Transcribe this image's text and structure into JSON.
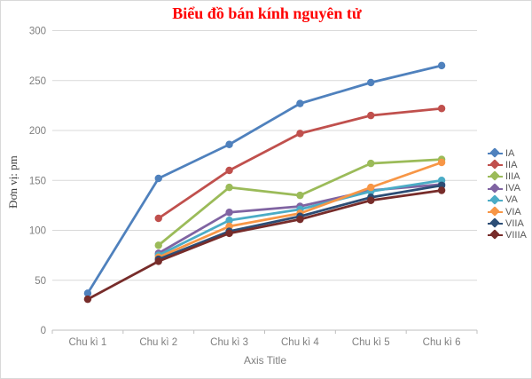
{
  "chart_data": {
    "type": "line",
    "title": "Biểu đồ bán kính nguyên tử",
    "title_color": "#ff0000",
    "xlabel": "Axis Title",
    "ylabel": "Đơn vị: pm",
    "categories": [
      "Chu kì 1",
      "Chu kì 2",
      "Chu kì 3",
      "Chu kì 4",
      "Chu kì 5",
      "Chu kì 6"
    ],
    "yticks": [
      0,
      50,
      100,
      150,
      200,
      250,
      300
    ],
    "ylim": [
      0,
      300
    ],
    "grid": true,
    "legend_position": "right",
    "series": [
      {
        "name": "IA",
        "color": "#4f81bd",
        "values": [
          37,
          152,
          186,
          227,
          248,
          265
        ]
      },
      {
        "name": "IIA",
        "color": "#c0504d",
        "values": [
          null,
          112,
          160,
          197,
          215,
          222
        ]
      },
      {
        "name": "IIIA",
        "color": "#9bbb59",
        "values": [
          null,
          85,
          143,
          135,
          167,
          171
        ]
      },
      {
        "name": "IVA",
        "color": "#8064a2",
        "values": [
          null,
          77,
          118,
          124,
          140,
          146
        ]
      },
      {
        "name": "VA",
        "color": "#4bacc6",
        "values": [
          null,
          75,
          110,
          121,
          139,
          150
        ]
      },
      {
        "name": "VIA",
        "color": "#f79646",
        "values": [
          null,
          73,
          104,
          117,
          143,
          168
        ]
      },
      {
        "name": "VIIA",
        "color": "#2c4d75",
        "values": [
          null,
          71,
          99,
          114,
          133,
          145
        ]
      },
      {
        "name": "VIIIA",
        "color": "#772c2a",
        "values": [
          31,
          69,
          97,
          111,
          130,
          140
        ]
      }
    ]
  }
}
